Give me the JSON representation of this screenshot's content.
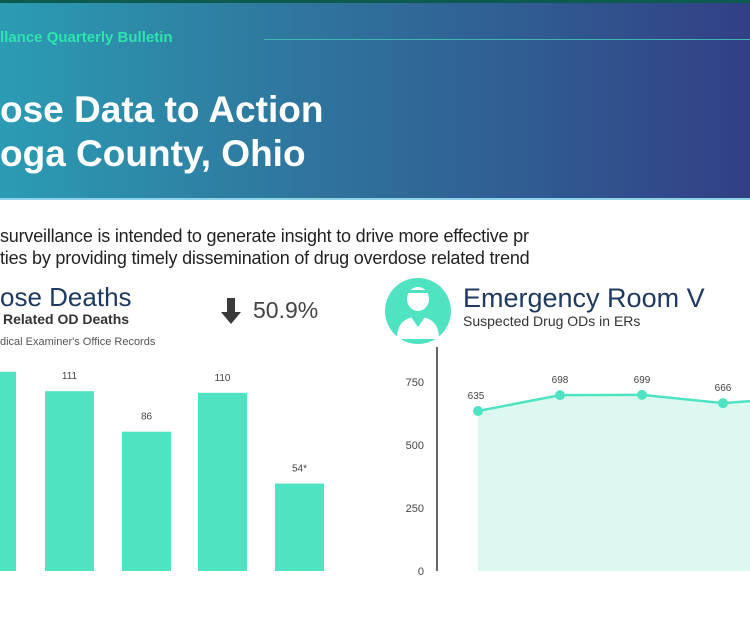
{
  "header": {
    "bulletin": "llance Quarterly Bulletin",
    "title_line1": "ose Data to Action",
    "title_line2": "oga County, Ohio"
  },
  "intro": {
    "line1": "surveillance is intended to generate insight to drive more effective pr",
    "line2": "ties by providing timely dissemination of drug overdose related trend"
  },
  "deaths": {
    "title": "ose Deaths",
    "subtitle": "Related OD Deaths",
    "source": "dical Examiner's Office Records",
    "change_icon": "arrow-down-icon",
    "change": "50.9%"
  },
  "er": {
    "icon": "doctor-avatar-icon",
    "title": "Emergency Room V",
    "subtitle": "Suspected Drug ODs in ERs"
  },
  "colors": {
    "accent": "#4fe3c1",
    "area": "#dcf8f1",
    "title": "#1f3a60"
  },
  "chart_data": [
    {
      "type": "bar",
      "title": "Related OD Deaths",
      "values": [
        123,
        111,
        86,
        110,
        54
      ],
      "labels": [
        "",
        "111",
        "86",
        "110",
        "54*"
      ],
      "ylim": [
        0,
        130
      ]
    },
    {
      "type": "area",
      "title": "Suspected Drug ODs in ERs",
      "values": [
        635,
        698,
        699,
        666,
        690
      ],
      "labels": [
        "635",
        "698",
        "699",
        "666",
        ""
      ],
      "yticks": [
        "0",
        "250",
        "500",
        "750"
      ],
      "ylim": [
        0,
        750
      ]
    }
  ]
}
